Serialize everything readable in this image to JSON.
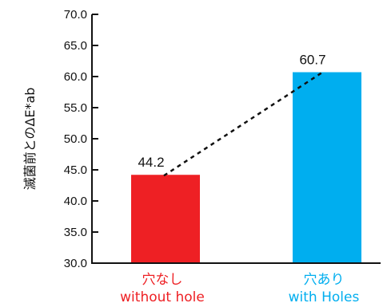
{
  "chart_data": {
    "type": "bar",
    "ylabel": "滅菌前とのΔE*ab",
    "ylim": [
      30.0,
      70.0
    ],
    "yticks": [
      "30.0",
      "35.0",
      "40.0",
      "45.0",
      "50.0",
      "55.0",
      "60.0",
      "65.0",
      "70.0"
    ],
    "categories": [
      {
        "line1": "穴なし",
        "line2": "without hole"
      },
      {
        "line1": "穴あり",
        "line2": "with Holes"
      }
    ],
    "values": [
      44.2,
      60.7
    ],
    "value_labels": [
      "44.2",
      "60.7"
    ],
    "colors": [
      "#ee2024",
      "#00aeef"
    ],
    "trend_line": "dashed",
    "grid": false
  }
}
